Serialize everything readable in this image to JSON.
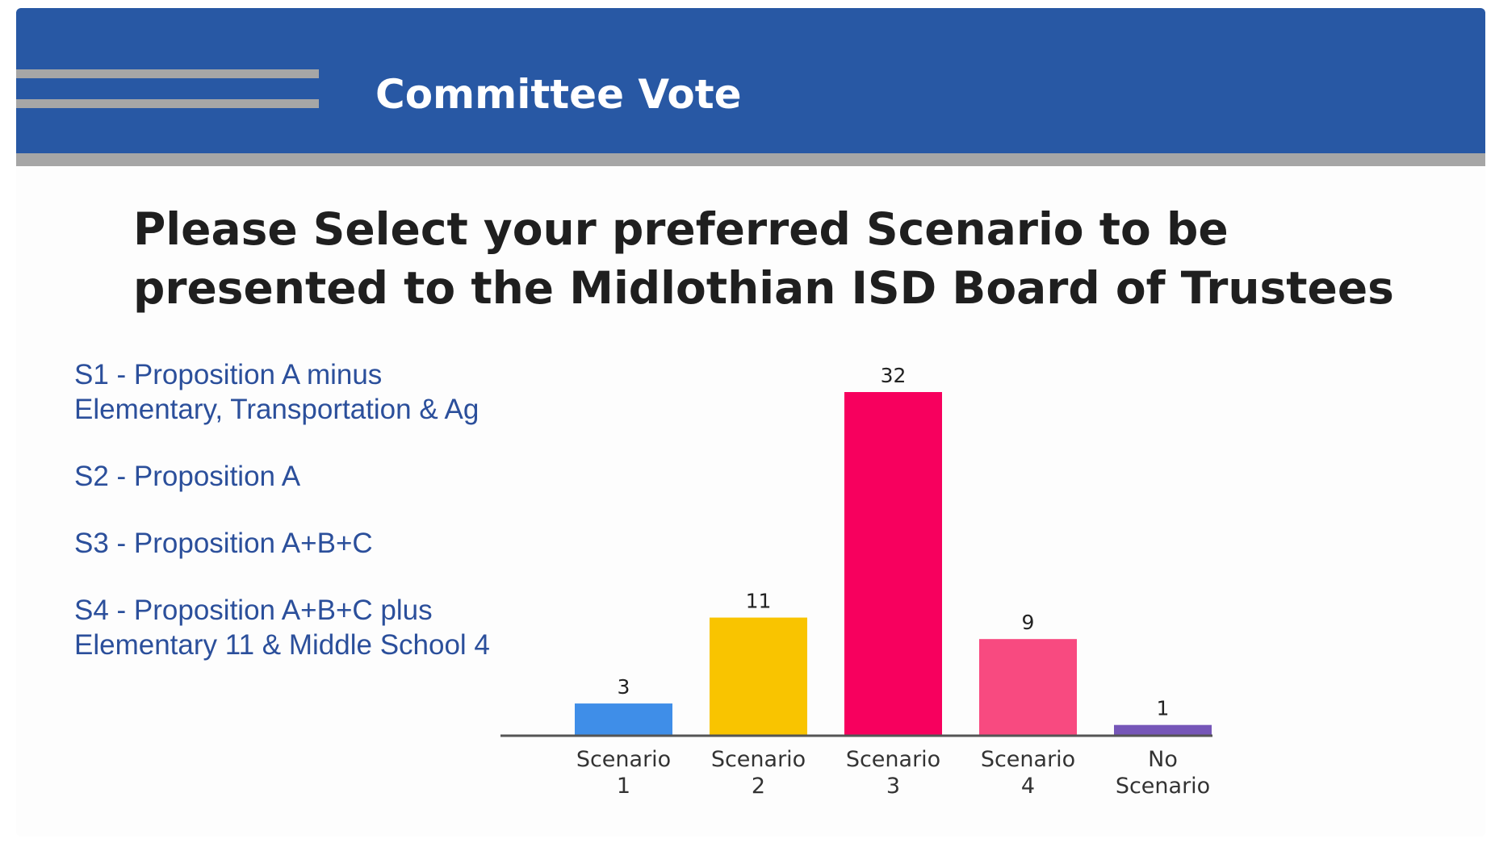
{
  "slide": {
    "title": "Committee Vote",
    "question": "Please Select your preferred Scenario to be presented to the Midlothian ISD Board of Trustees",
    "legend": [
      "S1 - Proposition A minus Elementary, Transportation & Ag",
      "S2 - Proposition A",
      "S3 - Proposition A+B+C",
      "S4 - Proposition A+B+C plus Elementary 11 & Middle School 4"
    ],
    "colors": {
      "header": "#2858a4",
      "header_accent": "#a6a6a6",
      "legend_text": "#2b4f9b"
    }
  },
  "chart_data": {
    "type": "bar",
    "categories": [
      [
        "Scenario",
        "1"
      ],
      [
        "Scenario",
        "2"
      ],
      [
        "Scenario",
        "3"
      ],
      [
        "Scenario",
        "4"
      ],
      [
        "No",
        "Scenario"
      ]
    ],
    "values": [
      3,
      11,
      32,
      9,
      1
    ],
    "colors": [
      "#3f8ee8",
      "#f9c400",
      "#f7005e",
      "#f84a80",
      "#7656b8"
    ],
    "ylim": [
      0,
      32
    ],
    "grid": false,
    "legend": "none"
  }
}
